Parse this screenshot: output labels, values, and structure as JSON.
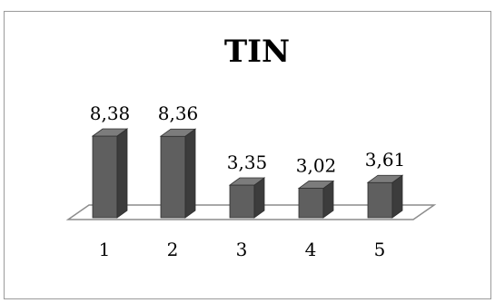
{
  "chart_data": {
    "type": "bar",
    "title": "TIN",
    "categories": [
      "1",
      "2",
      "3",
      "4",
      "5"
    ],
    "values": [
      8.38,
      8.36,
      3.35,
      3.02,
      3.61
    ],
    "data_labels": [
      "8,38",
      "8,36",
      "3,35",
      "3,02",
      "3,61"
    ],
    "xlabel": "",
    "ylabel": "",
    "ylim": [
      0,
      9
    ],
    "grid": false,
    "legend": "none",
    "style": "3d-column",
    "colors": {
      "bar_front": "#5f5f5f",
      "bar_side": "#3c3c3c",
      "bar_top": "#7c7c7c",
      "floor_stroke": "#8c8c8c",
      "frame_border": "#9a9a9a"
    }
  }
}
